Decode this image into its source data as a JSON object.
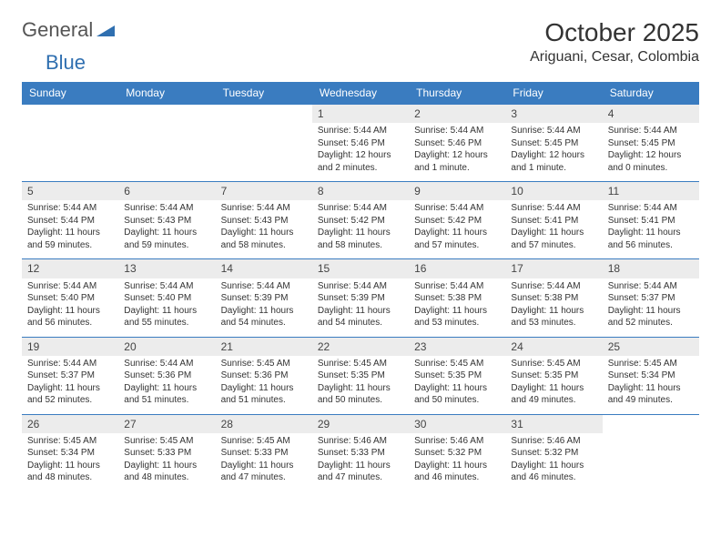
{
  "logo": {
    "text1": "General",
    "text2": "Blue",
    "tri_color": "#2f6fb0"
  },
  "title": "October 2025",
  "location": "Ariguani, Cesar, Colombia",
  "colors": {
    "header_bg": "#3a7cc0",
    "daynum_bg": "#ececec",
    "border": "#3a7cc0"
  },
  "day_headers": [
    "Sunday",
    "Monday",
    "Tuesday",
    "Wednesday",
    "Thursday",
    "Friday",
    "Saturday"
  ],
  "weeks": [
    [
      null,
      null,
      null,
      {
        "n": "1",
        "sunrise": "Sunrise: 5:44 AM",
        "sunset": "Sunset: 5:46 PM",
        "daylight": "Daylight: 12 hours and 2 minutes."
      },
      {
        "n": "2",
        "sunrise": "Sunrise: 5:44 AM",
        "sunset": "Sunset: 5:46 PM",
        "daylight": "Daylight: 12 hours and 1 minute."
      },
      {
        "n": "3",
        "sunrise": "Sunrise: 5:44 AM",
        "sunset": "Sunset: 5:45 PM",
        "daylight": "Daylight: 12 hours and 1 minute."
      },
      {
        "n": "4",
        "sunrise": "Sunrise: 5:44 AM",
        "sunset": "Sunset: 5:45 PM",
        "daylight": "Daylight: 12 hours and 0 minutes."
      }
    ],
    [
      {
        "n": "5",
        "sunrise": "Sunrise: 5:44 AM",
        "sunset": "Sunset: 5:44 PM",
        "daylight": "Daylight: 11 hours and 59 minutes."
      },
      {
        "n": "6",
        "sunrise": "Sunrise: 5:44 AM",
        "sunset": "Sunset: 5:43 PM",
        "daylight": "Daylight: 11 hours and 59 minutes."
      },
      {
        "n": "7",
        "sunrise": "Sunrise: 5:44 AM",
        "sunset": "Sunset: 5:43 PM",
        "daylight": "Daylight: 11 hours and 58 minutes."
      },
      {
        "n": "8",
        "sunrise": "Sunrise: 5:44 AM",
        "sunset": "Sunset: 5:42 PM",
        "daylight": "Daylight: 11 hours and 58 minutes."
      },
      {
        "n": "9",
        "sunrise": "Sunrise: 5:44 AM",
        "sunset": "Sunset: 5:42 PM",
        "daylight": "Daylight: 11 hours and 57 minutes."
      },
      {
        "n": "10",
        "sunrise": "Sunrise: 5:44 AM",
        "sunset": "Sunset: 5:41 PM",
        "daylight": "Daylight: 11 hours and 57 minutes."
      },
      {
        "n": "11",
        "sunrise": "Sunrise: 5:44 AM",
        "sunset": "Sunset: 5:41 PM",
        "daylight": "Daylight: 11 hours and 56 minutes."
      }
    ],
    [
      {
        "n": "12",
        "sunrise": "Sunrise: 5:44 AM",
        "sunset": "Sunset: 5:40 PM",
        "daylight": "Daylight: 11 hours and 56 minutes."
      },
      {
        "n": "13",
        "sunrise": "Sunrise: 5:44 AM",
        "sunset": "Sunset: 5:40 PM",
        "daylight": "Daylight: 11 hours and 55 minutes."
      },
      {
        "n": "14",
        "sunrise": "Sunrise: 5:44 AM",
        "sunset": "Sunset: 5:39 PM",
        "daylight": "Daylight: 11 hours and 54 minutes."
      },
      {
        "n": "15",
        "sunrise": "Sunrise: 5:44 AM",
        "sunset": "Sunset: 5:39 PM",
        "daylight": "Daylight: 11 hours and 54 minutes."
      },
      {
        "n": "16",
        "sunrise": "Sunrise: 5:44 AM",
        "sunset": "Sunset: 5:38 PM",
        "daylight": "Daylight: 11 hours and 53 minutes."
      },
      {
        "n": "17",
        "sunrise": "Sunrise: 5:44 AM",
        "sunset": "Sunset: 5:38 PM",
        "daylight": "Daylight: 11 hours and 53 minutes."
      },
      {
        "n": "18",
        "sunrise": "Sunrise: 5:44 AM",
        "sunset": "Sunset: 5:37 PM",
        "daylight": "Daylight: 11 hours and 52 minutes."
      }
    ],
    [
      {
        "n": "19",
        "sunrise": "Sunrise: 5:44 AM",
        "sunset": "Sunset: 5:37 PM",
        "daylight": "Daylight: 11 hours and 52 minutes."
      },
      {
        "n": "20",
        "sunrise": "Sunrise: 5:44 AM",
        "sunset": "Sunset: 5:36 PM",
        "daylight": "Daylight: 11 hours and 51 minutes."
      },
      {
        "n": "21",
        "sunrise": "Sunrise: 5:45 AM",
        "sunset": "Sunset: 5:36 PM",
        "daylight": "Daylight: 11 hours and 51 minutes."
      },
      {
        "n": "22",
        "sunrise": "Sunrise: 5:45 AM",
        "sunset": "Sunset: 5:35 PM",
        "daylight": "Daylight: 11 hours and 50 minutes."
      },
      {
        "n": "23",
        "sunrise": "Sunrise: 5:45 AM",
        "sunset": "Sunset: 5:35 PM",
        "daylight": "Daylight: 11 hours and 50 minutes."
      },
      {
        "n": "24",
        "sunrise": "Sunrise: 5:45 AM",
        "sunset": "Sunset: 5:35 PM",
        "daylight": "Daylight: 11 hours and 49 minutes."
      },
      {
        "n": "25",
        "sunrise": "Sunrise: 5:45 AM",
        "sunset": "Sunset: 5:34 PM",
        "daylight": "Daylight: 11 hours and 49 minutes."
      }
    ],
    [
      {
        "n": "26",
        "sunrise": "Sunrise: 5:45 AM",
        "sunset": "Sunset: 5:34 PM",
        "daylight": "Daylight: 11 hours and 48 minutes."
      },
      {
        "n": "27",
        "sunrise": "Sunrise: 5:45 AM",
        "sunset": "Sunset: 5:33 PM",
        "daylight": "Daylight: 11 hours and 48 minutes."
      },
      {
        "n": "28",
        "sunrise": "Sunrise: 5:45 AM",
        "sunset": "Sunset: 5:33 PM",
        "daylight": "Daylight: 11 hours and 47 minutes."
      },
      {
        "n": "29",
        "sunrise": "Sunrise: 5:46 AM",
        "sunset": "Sunset: 5:33 PM",
        "daylight": "Daylight: 11 hours and 47 minutes."
      },
      {
        "n": "30",
        "sunrise": "Sunrise: 5:46 AM",
        "sunset": "Sunset: 5:32 PM",
        "daylight": "Daylight: 11 hours and 46 minutes."
      },
      {
        "n": "31",
        "sunrise": "Sunrise: 5:46 AM",
        "sunset": "Sunset: 5:32 PM",
        "daylight": "Daylight: 11 hours and 46 minutes."
      },
      null
    ]
  ]
}
